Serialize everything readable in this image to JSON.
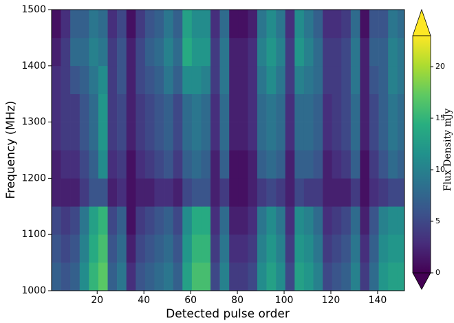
{
  "chart_data": {
    "type": "heatmap",
    "xlabel": "Detected pulse order",
    "ylabel": "Frequency (MHz)",
    "colorbar_label": "Flux Density mJy",
    "colormap": "viridis",
    "x_bins": [
      0.5,
      4.5,
      8.5,
      12.5,
      16.5,
      20.5,
      24.5,
      28.5,
      32.5,
      36.5,
      40.5,
      44.5,
      48.5,
      52.5,
      56.5,
      60.5,
      64.5,
      68.5,
      72.5,
      76.5,
      80.5,
      84.5,
      88.5,
      92.5,
      96.5,
      100.5,
      104.5,
      108.5,
      112.5,
      116.5,
      120.5,
      124.5,
      128.5,
      132.5,
      136.5,
      140.5,
      144.5,
      148.5,
      151.5
    ],
    "y_bins": [
      1000,
      1050,
      1100,
      1150,
      1200,
      1250,
      1300,
      1350,
      1400,
      1450,
      1500
    ],
    "z": [
      [
        7,
        6,
        7,
        11,
        15,
        17,
        7,
        9,
        3,
        6,
        7,
        8,
        9,
        7,
        13,
        16,
        16,
        5,
        10,
        4,
        4,
        5,
        11,
        13,
        11,
        5,
        13,
        12,
        10,
        5,
        6,
        7,
        10,
        4,
        8,
        12,
        13,
        13
      ],
      [
        6,
        5,
        6,
        10,
        14,
        16,
        6,
        8,
        2,
        5,
        6,
        7,
        8,
        6,
        12,
        15,
        15,
        4,
        9,
        3,
        3,
        4,
        10,
        12,
        10,
        4,
        12,
        11,
        9,
        4,
        5,
        6,
        9,
        3,
        7,
        11,
        12,
        12
      ],
      [
        5,
        4,
        5,
        9,
        13,
        15,
        5,
        7,
        1,
        4,
        5,
        6,
        7,
        5,
        11,
        14,
        14,
        3,
        8,
        2,
        2,
        3,
        9,
        11,
        9,
        3,
        11,
        10,
        8,
        3,
        4,
        5,
        8,
        2,
        6,
        10,
        11,
        11
      ],
      [
        2,
        2,
        2,
        4,
        6,
        6,
        2,
        3,
        1,
        2,
        2,
        3,
        3,
        2,
        5,
        6,
        6,
        2,
        4,
        1,
        1,
        2,
        4,
        5,
        4,
        2,
        5,
        4,
        4,
        2,
        2,
        2,
        4,
        1,
        3,
        4,
        5,
        5
      ],
      [
        2,
        3,
        3,
        5,
        7,
        11,
        3,
        4,
        1,
        3,
        4,
        5,
        6,
        4,
        7,
        8,
        7,
        2,
        7,
        1,
        1,
        2,
        7,
        8,
        7,
        2,
        7,
        7,
        6,
        2,
        3,
        4,
        7,
        1,
        4,
        6,
        8,
        7
      ],
      [
        3,
        4,
        4,
        6,
        8,
        12,
        4,
        5,
        2,
        4,
        5,
        6,
        7,
        5,
        8,
        9,
        8,
        3,
        8,
        2,
        2,
        3,
        8,
        9,
        8,
        3,
        8,
        8,
        7,
        3,
        4,
        5,
        8,
        2,
        5,
        7,
        9,
        8
      ],
      [
        3,
        4,
        4,
        6,
        8,
        12,
        4,
        5,
        2,
        4,
        5,
        6,
        7,
        5,
        8,
        9,
        8,
        3,
        8,
        2,
        2,
        3,
        8,
        9,
        8,
        3,
        8,
        8,
        7,
        3,
        4,
        5,
        8,
        2,
        5,
        7,
        9,
        8
      ],
      [
        3,
        4,
        6,
        7,
        9,
        11,
        4,
        6,
        2,
        5,
        6,
        7,
        9,
        7,
        11,
        11,
        10,
        4,
        9,
        2,
        2,
        3,
        9,
        11,
        9,
        4,
        10,
        9,
        8,
        4,
        4,
        5,
        9,
        2,
        6,
        7,
        10,
        9
      ],
      [
        2,
        4,
        8,
        8,
        10,
        9,
        4,
        6,
        2,
        5,
        7,
        8,
        10,
        8,
        14,
        12,
        12,
        4,
        9,
        2,
        2,
        3,
        10,
        12,
        10,
        4,
        12,
        10,
        8,
        4,
        4,
        5,
        9,
        2,
        7,
        7,
        10,
        9
      ],
      [
        1,
        3,
        7,
        7,
        9,
        8,
        3,
        5,
        1,
        4,
        6,
        7,
        9,
        7,
        13,
        11,
        11,
        3,
        8,
        1,
        1,
        2,
        9,
        11,
        9,
        3,
        11,
        9,
        7,
        3,
        3,
        4,
        8,
        1,
        6,
        6,
        9,
        8
      ]
    ],
    "xlim": [
      0.5,
      151.5
    ],
    "ylim": [
      1000,
      1500
    ],
    "xticks": [
      20,
      40,
      60,
      80,
      100,
      120,
      140
    ],
    "yticks": [
      1000,
      1100,
      1200,
      1300,
      1400,
      1500
    ],
    "clim": [
      0,
      23
    ],
    "cticks": [
      0,
      5,
      10,
      15,
      20
    ]
  }
}
